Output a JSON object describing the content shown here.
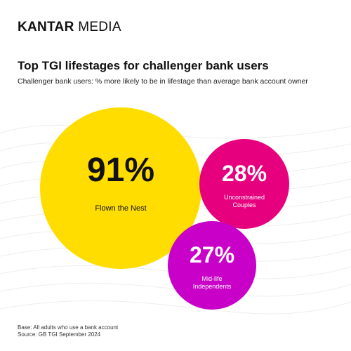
{
  "brand": {
    "part1": "KANTAR",
    "part2": " MEDIA"
  },
  "header": {
    "title": "Top TGI lifestages for challenger bank users",
    "subtitle": "Challenger bank users: % more likely to be in lifestage than average bank account owner"
  },
  "chart_data": {
    "type": "bubble",
    "unit": "%",
    "bubbles": [
      {
        "value": 91,
        "value_label": "91%",
        "label_lines": [
          "Flown the Nest"
        ],
        "color": "#FFDD00",
        "text_color": "#111111"
      },
      {
        "value": 28,
        "value_label": "28%",
        "label_lines": [
          "Unconstrained",
          "Couples"
        ],
        "color": "#E6007E",
        "text_color": "#FFFFFF"
      },
      {
        "value": 27,
        "value_label": "27%",
        "label_lines": [
          "Mid-life",
          "Independents"
        ],
        "color": "#C800C8",
        "text_color": "#FFFFFF"
      }
    ]
  },
  "footer": {
    "base": "Base: All adults who use a bank account",
    "source": "Source: GB TGI September 2024"
  }
}
